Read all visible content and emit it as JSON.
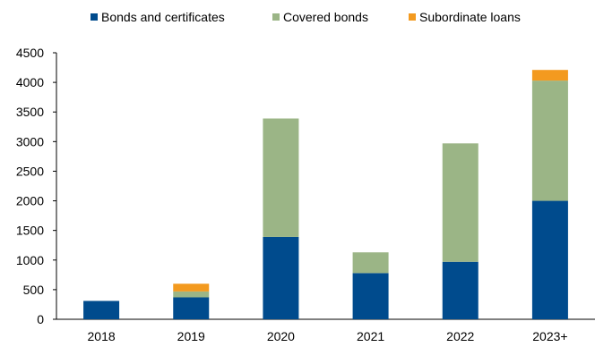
{
  "chart_data": {
    "type": "bar",
    "stacked": true,
    "categories": [
      "2018",
      "2019",
      "2020",
      "2021",
      "2022",
      "2023+"
    ],
    "series": [
      {
        "name": "Bonds and certificates",
        "color": "#004b8d",
        "values": [
          310,
          370,
          1390,
          780,
          970,
          2000
        ]
      },
      {
        "name": "Covered bonds",
        "color": "#9bb586",
        "values": [
          0,
          100,
          2000,
          350,
          2000,
          2030
        ]
      },
      {
        "name": "Subordinate loans",
        "color": "#f39a1f",
        "values": [
          0,
          130,
          0,
          0,
          0,
          180
        ]
      }
    ],
    "ylim": [
      0,
      4500
    ],
    "yticks": [
      "0",
      "500",
      "1000",
      "1500",
      "2000",
      "2500",
      "3000",
      "3500",
      "4000",
      "4500"
    ],
    "grid": false,
    "legend_position": "top"
  }
}
